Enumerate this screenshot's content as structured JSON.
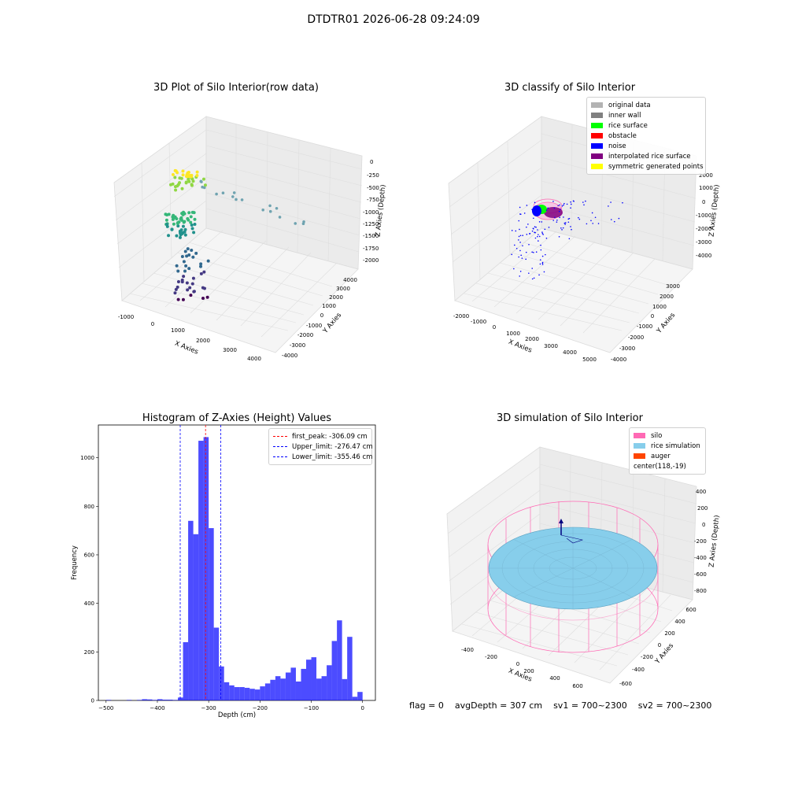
{
  "suptitle": "DTDTR01 2026-06-28 09:24:09",
  "panels": {
    "raw": {
      "title": "3D Plot of Silo Interior(row data)",
      "xlabel": "X Axies",
      "ylabel": "Y Axies",
      "zlabel": "Z Axies (Depth)",
      "xticks": [
        "-1000",
        "0",
        "1000",
        "2000",
        "3000",
        "4000"
      ],
      "yticks": [
        "-4000",
        "-3000",
        "-2000",
        "-1000",
        "0",
        "1000",
        "2000",
        "3000",
        "4000"
      ],
      "zticks": [
        "0",
        "-250",
        "-500",
        "-750",
        "-1000",
        "-1250",
        "-1500",
        "-1750",
        "-2000"
      ]
    },
    "classify": {
      "title": "3D classify of Silo Interior",
      "xlabel": "X Axies",
      "ylabel": "Y Axies",
      "zlabel": "Z Axies (Depth)",
      "xticks": [
        "-2000",
        "-1000",
        "0",
        "1000",
        "2000",
        "3000",
        "4000",
        "5000"
      ],
      "yticks": [
        "-4000",
        "-3000",
        "-2000",
        "-1000",
        "0",
        "1000",
        "2000",
        "3000"
      ],
      "zticks": [
        "2000",
        "1000",
        "0",
        "-1000",
        "-2000",
        "-3000",
        "-4000"
      ],
      "legend": [
        {
          "label": "original data",
          "color": "#b3b3b3"
        },
        {
          "label": "inner wall",
          "color": "#808080"
        },
        {
          "label": "rice surface",
          "color": "#00ff00"
        },
        {
          "label": "obstacle",
          "color": "#ff0000"
        },
        {
          "label": "noise",
          "color": "#0000ff"
        },
        {
          "label": "interpolated rice surface",
          "color": "#800080"
        },
        {
          "label": "symmetric generated points",
          "color": "#ffff00"
        }
      ]
    },
    "simulation": {
      "title": "3D simulation of Silo Interior",
      "xlabel": "X Axies",
      "ylabel": "Y Axies",
      "zlabel": "Z Axies (Depth)",
      "xticks": [
        "-400",
        "-200",
        "0",
        "200",
        "400",
        "600"
      ],
      "yticks": [
        "-600",
        "-400",
        "-200",
        "0",
        "200",
        "400",
        "600"
      ],
      "zticks": [
        "400",
        "200",
        "0",
        "-200",
        "-400",
        "-600",
        "-800"
      ],
      "legend": [
        {
          "label": "silo",
          "color": "#ff69b4"
        },
        {
          "label": "rice simulation",
          "color": "#87ceeb"
        },
        {
          "label": "auger",
          "color": "#ff4500"
        },
        {
          "label": "center(118,-19)",
          "color": ""
        }
      ]
    }
  },
  "chart_data": {
    "type": "bar",
    "title": "Histogram of Z-Axies (Height) Values",
    "xlabel": "Depth (cm)",
    "ylabel": "Frequency",
    "xlim": [
      -515,
      25
    ],
    "ylim": [
      0,
      1135
    ],
    "xticks": [
      -500,
      -400,
      -300,
      -200,
      -100,
      0
    ],
    "yticks": [
      0,
      200,
      400,
      600,
      800,
      1000
    ],
    "bin_width": 10,
    "bar_color": "#0000ff",
    "bins": [
      {
        "left": -500,
        "count": 2
      },
      {
        "left": -490,
        "count": 0
      },
      {
        "left": -480,
        "count": 0
      },
      {
        "left": -470,
        "count": 0
      },
      {
        "left": -460,
        "count": 2
      },
      {
        "left": -450,
        "count": 0
      },
      {
        "left": -440,
        "count": 2
      },
      {
        "left": -430,
        "count": 5
      },
      {
        "left": -420,
        "count": 4
      },
      {
        "left": -410,
        "count": 2
      },
      {
        "left": -400,
        "count": 5
      },
      {
        "left": -390,
        "count": 3
      },
      {
        "left": -380,
        "count": 3
      },
      {
        "left": -370,
        "count": 2
      },
      {
        "left": -360,
        "count": 12
      },
      {
        "left": -350,
        "count": 240
      },
      {
        "left": -340,
        "count": 740
      },
      {
        "left": -330,
        "count": 685
      },
      {
        "left": -320,
        "count": 1070
      },
      {
        "left": -310,
        "count": 1085
      },
      {
        "left": -300,
        "count": 710
      },
      {
        "left": -290,
        "count": 300
      },
      {
        "left": -280,
        "count": 140
      },
      {
        "left": -270,
        "count": 75
      },
      {
        "left": -260,
        "count": 62
      },
      {
        "left": -250,
        "count": 55
      },
      {
        "left": -240,
        "count": 55
      },
      {
        "left": -230,
        "count": 52
      },
      {
        "left": -220,
        "count": 48
      },
      {
        "left": -210,
        "count": 45
      },
      {
        "left": -200,
        "count": 58
      },
      {
        "left": -190,
        "count": 70
      },
      {
        "left": -180,
        "count": 85
      },
      {
        "left": -170,
        "count": 100
      },
      {
        "left": -160,
        "count": 90
      },
      {
        "left": -150,
        "count": 115
      },
      {
        "left": -140,
        "count": 135
      },
      {
        "left": -130,
        "count": 78
      },
      {
        "left": -120,
        "count": 130
      },
      {
        "left": -110,
        "count": 168
      },
      {
        "left": -100,
        "count": 178
      },
      {
        "left": -90,
        "count": 90
      },
      {
        "left": -80,
        "count": 100
      },
      {
        "left": -70,
        "count": 145
      },
      {
        "left": -60,
        "count": 245
      },
      {
        "left": -50,
        "count": 330
      },
      {
        "left": -40,
        "count": 88
      },
      {
        "left": -30,
        "count": 262
      },
      {
        "left": -20,
        "count": 15
      },
      {
        "left": -10,
        "count": 35
      }
    ],
    "vlines": [
      {
        "label": "first_peak: -306.09 cm",
        "x": -306.09,
        "color": "#ff0000"
      },
      {
        "label": "Upper_limit: -276.47 cm",
        "x": -276.47,
        "color": "#0000ff"
      },
      {
        "label": "Lower_limit: -355.46 cm",
        "x": -355.46,
        "color": "#0000ff"
      }
    ]
  },
  "status": {
    "flag": "flag = 0",
    "avg_depth": "avgDepth = 307 cm",
    "sv1": "sv1 = 700~2300",
    "sv2": "sv2 = 700~2300"
  }
}
